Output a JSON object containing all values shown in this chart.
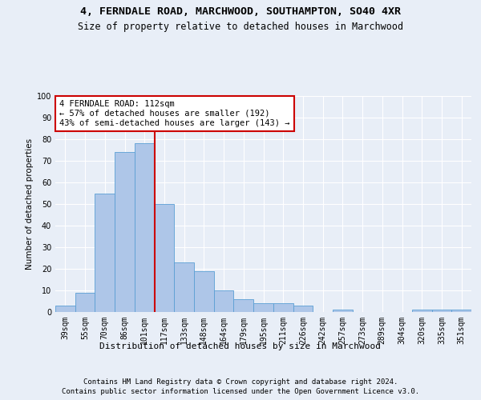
{
  "title1": "4, FERNDALE ROAD, MARCHWOOD, SOUTHAMPTON, SO40 4XR",
  "title2": "Size of property relative to detached houses in Marchwood",
  "xlabel": "Distribution of detached houses by size in Marchwood",
  "ylabel": "Number of detached properties",
  "categories": [
    "39sqm",
    "55sqm",
    "70sqm",
    "86sqm",
    "101sqm",
    "117sqm",
    "133sqm",
    "148sqm",
    "164sqm",
    "179sqm",
    "195sqm",
    "211sqm",
    "226sqm",
    "242sqm",
    "257sqm",
    "273sqm",
    "289sqm",
    "304sqm",
    "320sqm",
    "335sqm",
    "351sqm"
  ],
  "values": [
    3,
    9,
    55,
    74,
    78,
    50,
    23,
    19,
    10,
    6,
    4,
    4,
    3,
    0,
    1,
    0,
    0,
    0,
    1,
    1,
    1
  ],
  "bar_color": "#aec6e8",
  "bar_edge_color": "#5a9fd4",
  "vline_x_index": 4,
  "vline_color": "#cc0000",
  "annotation_text": "4 FERNDALE ROAD: 112sqm\n← 57% of detached houses are smaller (192)\n43% of semi-detached houses are larger (143) →",
  "annotation_box_color": "#ffffff",
  "annotation_box_edge": "#cc0000",
  "footer1": "Contains HM Land Registry data © Crown copyright and database right 2024.",
  "footer2": "Contains public sector information licensed under the Open Government Licence v3.0.",
  "bg_color": "#e8eef7",
  "plot_bg_color": "#e8eef7",
  "ylim": [
    0,
    100
  ],
  "grid_color": "#ffffff",
  "title1_fontsize": 9.5,
  "title2_fontsize": 8.5,
  "ylabel_fontsize": 7.5,
  "xlabel_fontsize": 8,
  "tick_fontsize": 7,
  "ann_fontsize": 7.5,
  "footer_fontsize": 6.5
}
